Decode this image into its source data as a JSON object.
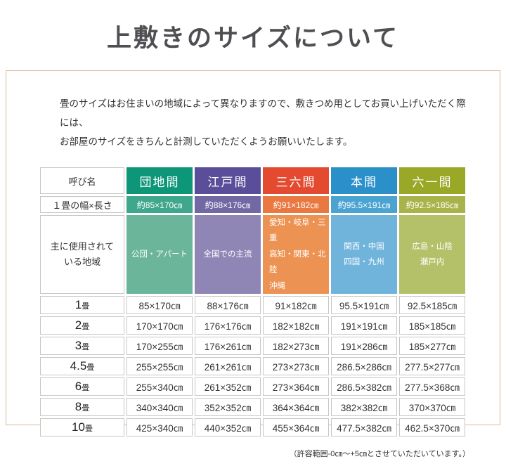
{
  "page": {
    "title": "上敷きのサイズについて",
    "intro_line1": "畳のサイズはお住まいの地域によって異なりますので、敷きつめ用としてお買い上げいただく際には、",
    "intro_line2": "お部屋のサイズをきちんと計測していただくようお願いいたします。",
    "note": "（許容範囲-0㎝～+5㎝とさせていただいています。）"
  },
  "table": {
    "corner_label": "呼び名",
    "size_row_label": "１畳の幅×長さ",
    "region_row_label": "主に使用されて\nいる地域",
    "columns": [
      {
        "name": "団地間",
        "size": "約85×170㎝",
        "region": "公団・アパート",
        "colors": {
          "header": "#0d9678",
          "size": "#3ea78c",
          "region": "#6bb59b"
        }
      },
      {
        "name": "江戸間",
        "size": "約88×176㎝",
        "region": "全国での主流",
        "colors": {
          "header": "#5a4d99",
          "size": "#7168a4",
          "region": "#9086b6"
        }
      },
      {
        "name": "三六間",
        "size": "約91×182㎝",
        "region": "愛知・岐阜・三重\n高知・関東・北陸\n沖縄",
        "colors": {
          "header": "#e34a30",
          "size": "#e97940",
          "region": "#ec9252"
        }
      },
      {
        "name": "本間",
        "size": "約95.5×191㎝",
        "region": "関西・中国\n四国・九州",
        "colors": {
          "header": "#2b90ca",
          "size": "#4ba3d2",
          "region": "#70b4dc"
        }
      },
      {
        "name": "六一間",
        "size": "約92.5×185㎝",
        "region": "広島・山陰\n瀬戸内",
        "colors": {
          "header": "#99a826",
          "size": "#a8b449",
          "region": "#b4c168"
        }
      }
    ],
    "rows": [
      {
        "num": "1",
        "unit": "畳",
        "values": [
          "85×170㎝",
          "88×176㎝",
          "91×182㎝",
          "95.5×191㎝",
          "92.5×185㎝"
        ]
      },
      {
        "num": "2",
        "unit": "畳",
        "values": [
          "170×170㎝",
          "176×176㎝",
          "182×182㎝",
          "191×191㎝",
          "185×185㎝"
        ]
      },
      {
        "num": "3",
        "unit": "畳",
        "values": [
          "170×255㎝",
          "176×261㎝",
          "182×273㎝",
          "191×286㎝",
          "185×277㎝"
        ]
      },
      {
        "num": "4.5",
        "unit": "畳",
        "values": [
          "255×255㎝",
          "261×261㎝",
          "273×273㎝",
          "286.5×286㎝",
          "277.5×277㎝"
        ]
      },
      {
        "num": "6",
        "unit": "畳",
        "values": [
          "255×340㎝",
          "261×352㎝",
          "273×364㎝",
          "286.5×382㎝",
          "277.5×368㎝"
        ]
      },
      {
        "num": "8",
        "unit": "畳",
        "values": [
          "340×340㎝",
          "352×352㎝",
          "364×364㎝",
          "382×382㎝",
          "370×370㎝"
        ]
      },
      {
        "num": "10",
        "unit": "畳",
        "values": [
          "425×340㎝",
          "440×352㎝",
          "455×364㎝",
          "477.5×382㎝",
          "462.5×370㎝"
        ]
      }
    ]
  }
}
